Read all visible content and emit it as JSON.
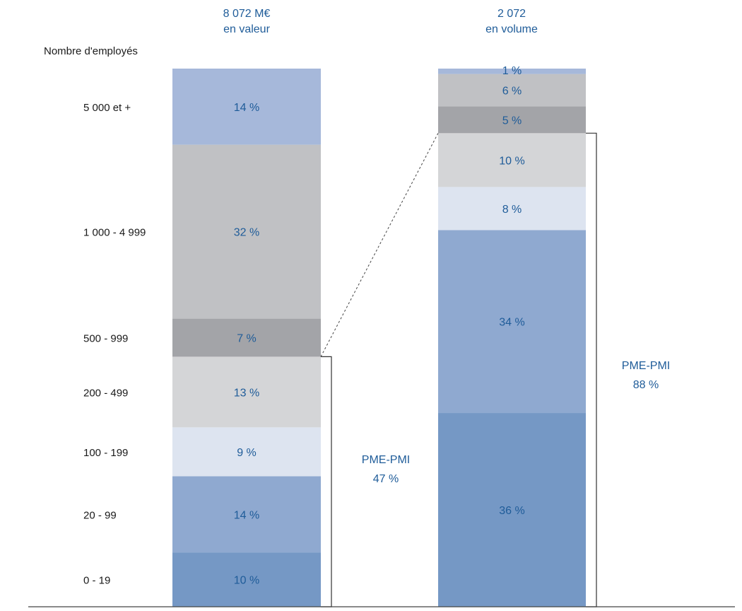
{
  "chart_data": {
    "type": "bar",
    "stacked": true,
    "value_unit": "%",
    "left_heading": "Nombre d'employés",
    "categories": [
      "0 - 19",
      "20 - 99",
      "100 - 199",
      "200 - 499",
      "500 - 999",
      "1 000 - 4 999",
      "5 000 et +"
    ],
    "series": [
      {
        "title_line1": "8 072 M€",
        "title_line2": "en valeur",
        "values": [
          10,
          14,
          9,
          13,
          7,
          32,
          14
        ],
        "labels": [
          "10 %",
          "14 %",
          "9 %",
          "13 %",
          "7 %",
          "32 %",
          "14 %"
        ]
      },
      {
        "title_line1": "2 072",
        "title_line2": "en volume",
        "values": [
          36,
          34,
          8,
          10,
          5,
          6,
          1
        ],
        "labels": [
          "36 %",
          "34 %",
          "8 %",
          "10 %",
          "5 %",
          "6 %",
          "1 %"
        ]
      }
    ],
    "brackets": [
      {
        "label_line1": "PME-PMI",
        "label_line2": "47 %",
        "series_index": 0,
        "from_category": 0,
        "to_category": 3
      },
      {
        "label_line1": "PME-PMI",
        "label_line2": "88 %",
        "series_index": 1,
        "from_category": 0,
        "to_category": 3
      }
    ],
    "colors": [
      "#7598c5",
      "#8fa9d0",
      "#dde4f0",
      "#d4d5d7",
      "#a3a4a8",
      "#c0c1c4",
      "#a6b8da"
    ],
    "text_color": "#1f5c99",
    "grid": false,
    "legend": "none"
  }
}
